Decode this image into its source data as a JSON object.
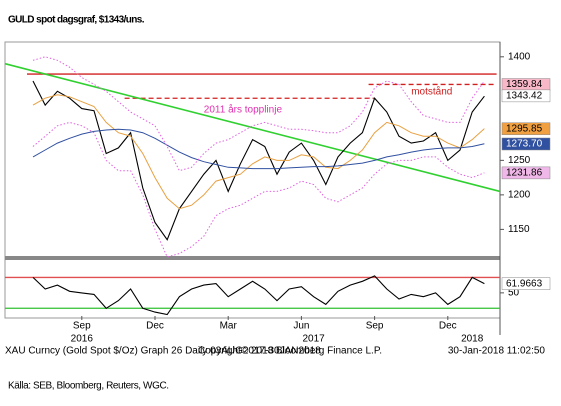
{
  "chart_data": [
    {
      "type": "line",
      "title": "GULD spot dagsgraf, $1343/uns.",
      "categories": [
        null,
        null,
        null,
        null,
        "Sep",
        null,
        null,
        null,
        null,
        null,
        "Dec",
        null,
        null,
        null,
        null,
        null,
        "Mar",
        null,
        null,
        null,
        null,
        null,
        "Jun",
        null,
        null,
        null,
        null,
        null,
        "Sep",
        null,
        null,
        null,
        null,
        null,
        "Dec",
        null,
        null,
        null
      ],
      "years": [
        {
          "value": 4,
          "label": "2016"
        },
        {
          "value": 23,
          "label": "2017"
        },
        {
          "value": 36,
          "label": "2018"
        }
      ],
      "series": [
        {
          "color": "#000000",
          "values": [
            1365,
            1330,
            1350,
            1340,
            1325,
            1322,
            1260,
            1268,
            1290,
            1210,
            1160,
            1135,
            1180,
            1205,
            1230,
            1250,
            1205,
            1245,
            1280,
            1270,
            1230,
            1262,
            1275,
            1250,
            1215,
            1255,
            1275,
            1290,
            1340,
            1320,
            1285,
            1275,
            1278,
            1290,
            1250,
            1265,
            1320,
            1343
          ]
        },
        {
          "color": "#e8a040",
          "values": [
            1330,
            1340,
            1345,
            1342,
            1335,
            1328,
            1305,
            1290,
            1285,
            1260,
            1225,
            1195,
            1180,
            1185,
            1200,
            1220,
            1225,
            1230,
            1245,
            1255,
            1250,
            1250,
            1258,
            1255,
            1240,
            1238,
            1250,
            1265,
            1290,
            1305,
            1300,
            1290,
            1285,
            1285,
            1275,
            1268,
            1280,
            1296
          ]
        },
        {
          "color": "#3050a0",
          "values": [
            1255,
            1265,
            1275,
            1282,
            1288,
            1292,
            1294,
            1295,
            1294,
            1290,
            1282,
            1272,
            1262,
            1254,
            1248,
            1244,
            1240,
            1239,
            1238,
            1238,
            1238,
            1239,
            1240,
            1241,
            1241,
            1242,
            1244,
            1246,
            1250,
            1255,
            1258,
            1262,
            1265,
            1267,
            1268,
            1268,
            1270,
            1274
          ]
        },
        {
          "color": "#e060e0",
          "values": [
            1395,
            1400,
            1395,
            1385,
            1370,
            1360,
            1350,
            1335,
            1320,
            1310,
            1300,
            1270,
            1235,
            1240,
            1260,
            1275,
            1280,
            1290,
            1300,
            1305,
            1300,
            1295,
            1295,
            1293,
            1290,
            1290,
            1300,
            1320,
            1355,
            1365,
            1360,
            1335,
            1315,
            1310,
            1305,
            1305,
            1340,
            1365
          ]
        },
        {
          "color": "#e060e0",
          "values": [
            1270,
            1285,
            1300,
            1305,
            1300,
            1290,
            1250,
            1235,
            1235,
            1200,
            1150,
            1110,
            1115,
            1125,
            1140,
            1170,
            1180,
            1185,
            1195,
            1205,
            1205,
            1210,
            1220,
            1215,
            1195,
            1190,
            1200,
            1210,
            1230,
            1245,
            1250,
            1250,
            1255,
            1255,
            1240,
            1230,
            1225,
            1232
          ]
        }
      ],
      "levels": [
        {
          "value": 1375,
          "color": "#d02020",
          "from": 0,
          "to": 38
        },
        {
          "value": 1340,
          "color": "#d02020",
          "from": 8,
          "to": 28,
          "dashed": true
        },
        {
          "value": 1360,
          "color": "#d02020",
          "from": 28,
          "to": 38,
          "dashed": true
        }
      ],
      "trendline": {
        "values": [
          1390,
          1205
        ],
        "color": "#30d030"
      },
      "annotations": [
        {
          "text": "2011 års topplinje",
          "color": "#e030b0",
          "at": 14,
          "value": 1323
        },
        {
          "text": "motstånd",
          "color": "#d02020",
          "at": 31,
          "value": 1349
        }
      ],
      "markers": [
        {
          "value": 1359.84,
          "label": "1359.84",
          "color": "#f8b8c8"
        },
        {
          "value": 1343.42,
          "label": "1343.42",
          "color": "#ffffff"
        },
        {
          "value": 1295.85,
          "label": "1295.85",
          "color": "#f0a040"
        },
        {
          "value": 1273.7,
          "label": "1273.70",
          "color": "#3050a0"
        },
        {
          "value": 1231.86,
          "label": "1231.86",
          "color": "#f0b8e8"
        }
      ],
      "ylim": [
        1110,
        1420
      ],
      "yticks": [
        1150,
        1200,
        1250,
        1400
      ]
    },
    {
      "type": "line",
      "series": [
        {
          "color": "#000000",
          "values": [
            70,
            55,
            60,
            52,
            50,
            48,
            30,
            40,
            55,
            30,
            25,
            22,
            45,
            55,
            60,
            62,
            45,
            55,
            65,
            55,
            40,
            55,
            58,
            45,
            35,
            52,
            60,
            65,
            72,
            55,
            42,
            48,
            45,
            50,
            35,
            45,
            70,
            62
          ]
        }
      ],
      "levels": [
        {
          "value": 70,
          "color": "#e05050"
        },
        {
          "value": 30,
          "color": "#30c030"
        }
      ],
      "markers": [
        {
          "value": 61.9663,
          "label": "61.9663",
          "color": "#ffffff"
        }
      ],
      "ylim": [
        20,
        90
      ],
      "yticks": [
        50
      ]
    }
  ],
  "footer": {
    "left": "XAU Curncy (Gold Spot  $/Oz) Graph 26  Daily 03AUG2017-30JAN2018",
    "center": "Copyright© 2018 Bloomberg Finance L.P.",
    "right": "30-Jan-2018 11:02:50"
  },
  "source": "Källa: SEB, Bloomberg, Reuters, WGC."
}
